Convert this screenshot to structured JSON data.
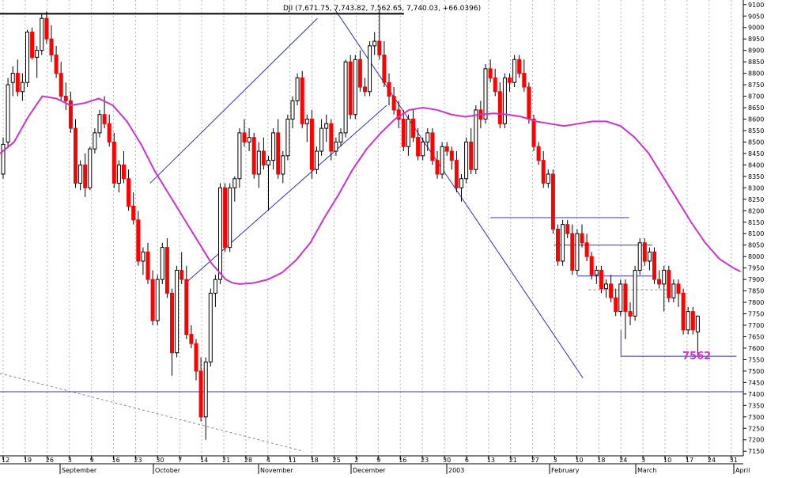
{
  "chart_data": {
    "type": "candlestick",
    "title": "DJI (7,671.75, 7,743.82, 7,562.65, 7,740.03, +66.0396)",
    "y_ticks": [
      "9100",
      "9050",
      "9000",
      "8950",
      "8900",
      "8850",
      "8800",
      "8750",
      "8700",
      "8650",
      "8600",
      "8550",
      "8500",
      "8450",
      "8400",
      "8350",
      "8300",
      "8250",
      "8200",
      "8150",
      "8100",
      "8050",
      "8000",
      "7950",
      "7900",
      "7850",
      "7800",
      "7750",
      "7700",
      "7650",
      "7600",
      "7550",
      "7500",
      "7450",
      "7400",
      "7350",
      "7300",
      "7250",
      "7200",
      "7150"
    ],
    "ylim": [
      7130,
      9120
    ],
    "x_day_labels": [
      "12",
      "19",
      "26",
      "3",
      "9",
      "16",
      "23",
      "30",
      "7",
      "14",
      "21",
      "28",
      "4",
      "11",
      "18",
      "25",
      "2",
      "9",
      "16",
      "23",
      "30",
      "6",
      "13",
      "21",
      "27",
      "3",
      "10",
      "18",
      "24",
      "3",
      "10",
      "17",
      "24",
      "31"
    ],
    "x_month_labels": [
      "September",
      "October",
      "November",
      "December",
      "2003",
      "February",
      "March",
      "April"
    ],
    "annotation": "7562",
    "colors": {
      "up": "#000000",
      "down": "#ff0000",
      "moving_average": "#cc33cc",
      "trendline": "#3333bb",
      "annotation": "#cc33cc"
    },
    "candles": [
      {
        "o": 8360,
        "h": 8520,
        "l": 8340,
        "c": 8490
      },
      {
        "o": 8500,
        "h": 8780,
        "l": 8480,
        "c": 8750
      },
      {
        "o": 8760,
        "h": 8830,
        "l": 8700,
        "c": 8800
      },
      {
        "o": 8800,
        "h": 8860,
        "l": 8700,
        "c": 8720
      },
      {
        "o": 8720,
        "h": 8800,
        "l": 8680,
        "c": 8760
      },
      {
        "o": 8760,
        "h": 8990,
        "l": 8740,
        "c": 8980
      },
      {
        "o": 8980,
        "h": 9000,
        "l": 8860,
        "c": 8870
      },
      {
        "o": 8870,
        "h": 8920,
        "l": 8780,
        "c": 8900
      },
      {
        "o": 8900,
        "h": 9060,
        "l": 8880,
        "c": 9040
      },
      {
        "o": 9040,
        "h": 9070,
        "l": 8930,
        "c": 8950
      },
      {
        "o": 8950,
        "h": 9010,
        "l": 8850,
        "c": 8880
      },
      {
        "o": 8880,
        "h": 8920,
        "l": 8780,
        "c": 8800
      },
      {
        "o": 8800,
        "h": 8850,
        "l": 8680,
        "c": 8700
      },
      {
        "o": 8700,
        "h": 8760,
        "l": 8640,
        "c": 8680
      },
      {
        "o": 8680,
        "h": 8720,
        "l": 8540,
        "c": 8560
      },
      {
        "o": 8560,
        "h": 8600,
        "l": 8300,
        "c": 8320
      },
      {
        "o": 8320,
        "h": 8420,
        "l": 8290,
        "c": 8400
      },
      {
        "o": 8400,
        "h": 8450,
        "l": 8260,
        "c": 8300
      },
      {
        "o": 8300,
        "h": 8480,
        "l": 8290,
        "c": 8470
      },
      {
        "o": 8470,
        "h": 8560,
        "l": 8450,
        "c": 8540
      },
      {
        "o": 8540,
        "h": 8640,
        "l": 8520,
        "c": 8620
      },
      {
        "o": 8620,
        "h": 8700,
        "l": 8560,
        "c": 8580
      },
      {
        "o": 8580,
        "h": 8620,
        "l": 8480,
        "c": 8500
      },
      {
        "o": 8500,
        "h": 8540,
        "l": 8300,
        "c": 8320
      },
      {
        "o": 8320,
        "h": 8420,
        "l": 8280,
        "c": 8400
      },
      {
        "o": 8400,
        "h": 8460,
        "l": 8320,
        "c": 8340
      },
      {
        "o": 8340,
        "h": 8380,
        "l": 8200,
        "c": 8220
      },
      {
        "o": 8220,
        "h": 8280,
        "l": 8140,
        "c": 8160
      },
      {
        "o": 8160,
        "h": 8200,
        "l": 7960,
        "c": 7980
      },
      {
        "o": 7980,
        "h": 8040,
        "l": 7920,
        "c": 8020
      },
      {
        "o": 8020,
        "h": 8060,
        "l": 7880,
        "c": 7900
      },
      {
        "o": 7900,
        "h": 7940,
        "l": 7700,
        "c": 7720
      },
      {
        "o": 7720,
        "h": 7920,
        "l": 7700,
        "c": 7900
      },
      {
        "o": 7900,
        "h": 8060,
        "l": 7880,
        "c": 8040
      },
      {
        "o": 8040,
        "h": 8080,
        "l": 7820,
        "c": 7840
      },
      {
        "o": 7840,
        "h": 7860,
        "l": 7480,
        "c": 7580
      },
      {
        "o": 7580,
        "h": 7960,
        "l": 7560,
        "c": 7940
      },
      {
        "o": 7940,
        "h": 8020,
        "l": 7880,
        "c": 7900
      },
      {
        "o": 7900,
        "h": 7960,
        "l": 7640,
        "c": 7660
      },
      {
        "o": 7660,
        "h": 7700,
        "l": 7600,
        "c": 7620
      },
      {
        "o": 7620,
        "h": 7640,
        "l": 7460,
        "c": 7500
      },
      {
        "o": 7500,
        "h": 7560,
        "l": 7280,
        "c": 7300
      },
      {
        "o": 7300,
        "h": 7560,
        "l": 7200,
        "c": 7540
      },
      {
        "o": 7540,
        "h": 7860,
        "l": 7520,
        "c": 7840
      },
      {
        "o": 7840,
        "h": 7920,
        "l": 7780,
        "c": 7900
      },
      {
        "o": 7900,
        "h": 8320,
        "l": 7880,
        "c": 8300
      },
      {
        "o": 8300,
        "h": 8320,
        "l": 8020,
        "c": 8040
      },
      {
        "o": 8040,
        "h": 8320,
        "l": 8020,
        "c": 8300
      },
      {
        "o": 8300,
        "h": 8350,
        "l": 8240,
        "c": 8340
      },
      {
        "o": 8340,
        "h": 8560,
        "l": 8300,
        "c": 8540
      },
      {
        "o": 8540,
        "h": 8600,
        "l": 8480,
        "c": 8500
      },
      {
        "o": 8500,
        "h": 8560,
        "l": 8460,
        "c": 8520
      },
      {
        "o": 8520,
        "h": 8540,
        "l": 8340,
        "c": 8360
      },
      {
        "o": 8360,
        "h": 8500,
        "l": 8300,
        "c": 8460
      },
      {
        "o": 8460,
        "h": 8520,
        "l": 8380,
        "c": 8400
      },
      {
        "o": 8400,
        "h": 8440,
        "l": 8200,
        "c": 8420
      },
      {
        "o": 8420,
        "h": 8560,
        "l": 8380,
        "c": 8540
      },
      {
        "o": 8540,
        "h": 8600,
        "l": 8340,
        "c": 8360
      },
      {
        "o": 8360,
        "h": 8460,
        "l": 8320,
        "c": 8440
      },
      {
        "o": 8440,
        "h": 8620,
        "l": 8420,
        "c": 8600
      },
      {
        "o": 8600,
        "h": 8700,
        "l": 8560,
        "c": 8680
      },
      {
        "o": 8680,
        "h": 8800,
        "l": 8660,
        "c": 8780
      },
      {
        "o": 8780,
        "h": 8810,
        "l": 8560,
        "c": 8580
      },
      {
        "o": 8580,
        "h": 8620,
        "l": 8500,
        "c": 8600
      },
      {
        "o": 8600,
        "h": 8640,
        "l": 8340,
        "c": 8380
      },
      {
        "o": 8380,
        "h": 8480,
        "l": 8360,
        "c": 8460
      },
      {
        "o": 8460,
        "h": 8600,
        "l": 8440,
        "c": 8560
      },
      {
        "o": 8560,
        "h": 8620,
        "l": 8500,
        "c": 8580
      },
      {
        "o": 8580,
        "h": 8600,
        "l": 8420,
        "c": 8460
      },
      {
        "o": 8460,
        "h": 8520,
        "l": 8440,
        "c": 8500
      },
      {
        "o": 8500,
        "h": 8560,
        "l": 8480,
        "c": 8540
      },
      {
        "o": 8540,
        "h": 8860,
        "l": 8520,
        "c": 8850
      },
      {
        "o": 8850,
        "h": 8880,
        "l": 8600,
        "c": 8620
      },
      {
        "o": 8620,
        "h": 8880,
        "l": 8600,
        "c": 8860
      },
      {
        "o": 8860,
        "h": 8900,
        "l": 8720,
        "c": 8740
      },
      {
        "o": 8740,
        "h": 8780,
        "l": 8700,
        "c": 8720
      },
      {
        "o": 8720,
        "h": 8940,
        "l": 8700,
        "c": 8920
      },
      {
        "o": 8920,
        "h": 8980,
        "l": 8880,
        "c": 8940
      },
      {
        "o": 8940,
        "h": 9080,
        "l": 8860,
        "c": 8880
      },
      {
        "o": 8880,
        "h": 8940,
        "l": 8740,
        "c": 8760
      },
      {
        "o": 8760,
        "h": 8800,
        "l": 8660,
        "c": 8700
      },
      {
        "o": 8700,
        "h": 8740,
        "l": 8620,
        "c": 8640
      },
      {
        "o": 8640,
        "h": 8680,
        "l": 8560,
        "c": 8600
      },
      {
        "o": 8600,
        "h": 8640,
        "l": 8460,
        "c": 8480
      },
      {
        "o": 8480,
        "h": 8620,
        "l": 8440,
        "c": 8600
      },
      {
        "o": 8600,
        "h": 8640,
        "l": 8500,
        "c": 8520
      },
      {
        "o": 8520,
        "h": 8560,
        "l": 8420,
        "c": 8440
      },
      {
        "o": 8440,
        "h": 8520,
        "l": 8420,
        "c": 8500
      },
      {
        "o": 8500,
        "h": 8560,
        "l": 8460,
        "c": 8540
      },
      {
        "o": 8540,
        "h": 8560,
        "l": 8400,
        "c": 8420
      },
      {
        "o": 8420,
        "h": 8460,
        "l": 8340,
        "c": 8360
      },
      {
        "o": 8360,
        "h": 8500,
        "l": 8340,
        "c": 8480
      },
      {
        "o": 8480,
        "h": 8500,
        "l": 8440,
        "c": 8460
      },
      {
        "o": 8460,
        "h": 8480,
        "l": 8380,
        "c": 8420
      },
      {
        "o": 8420,
        "h": 8460,
        "l": 8280,
        "c": 8300
      },
      {
        "o": 8300,
        "h": 8360,
        "l": 8240,
        "c": 8340
      },
      {
        "o": 8340,
        "h": 8520,
        "l": 8320,
        "c": 8500
      },
      {
        "o": 8500,
        "h": 8560,
        "l": 8360,
        "c": 8380
      },
      {
        "o": 8380,
        "h": 8660,
        "l": 8360,
        "c": 8640
      },
      {
        "o": 8640,
        "h": 8680,
        "l": 8560,
        "c": 8600
      },
      {
        "o": 8600,
        "h": 8840,
        "l": 8580,
        "c": 8820
      },
      {
        "o": 8820,
        "h": 8860,
        "l": 8760,
        "c": 8780
      },
      {
        "o": 8780,
        "h": 8820,
        "l": 8700,
        "c": 8720
      },
      {
        "o": 8720,
        "h": 8760,
        "l": 8560,
        "c": 8580
      },
      {
        "o": 8580,
        "h": 8800,
        "l": 8560,
        "c": 8780
      },
      {
        "o": 8780,
        "h": 8800,
        "l": 8720,
        "c": 8760
      },
      {
        "o": 8760,
        "h": 8880,
        "l": 8740,
        "c": 8860
      },
      {
        "o": 8860,
        "h": 8880,
        "l": 8780,
        "c": 8800
      },
      {
        "o": 8800,
        "h": 8860,
        "l": 8720,
        "c": 8740
      },
      {
        "o": 8740,
        "h": 8760,
        "l": 8580,
        "c": 8600
      },
      {
        "o": 8600,
        "h": 8620,
        "l": 8460,
        "c": 8480
      },
      {
        "o": 8480,
        "h": 8500,
        "l": 8400,
        "c": 8420
      },
      {
        "o": 8420,
        "h": 8460,
        "l": 8300,
        "c": 8320
      },
      {
        "o": 8320,
        "h": 8380,
        "l": 8300,
        "c": 8360
      },
      {
        "o": 8360,
        "h": 8380,
        "l": 8100,
        "c": 8120
      },
      {
        "o": 8120,
        "h": 8140,
        "l": 7960,
        "c": 7980
      },
      {
        "o": 7980,
        "h": 8160,
        "l": 7960,
        "c": 8140
      },
      {
        "o": 8140,
        "h": 8160,
        "l": 8080,
        "c": 8100
      },
      {
        "o": 8100,
        "h": 8140,
        "l": 7920,
        "c": 7940
      },
      {
        "o": 7940,
        "h": 8120,
        "l": 7920,
        "c": 8100
      },
      {
        "o": 8100,
        "h": 8140,
        "l": 8040,
        "c": 8060
      },
      {
        "o": 8060,
        "h": 8100,
        "l": 7980,
        "c": 8000
      },
      {
        "o": 8000,
        "h": 8020,
        "l": 7900,
        "c": 7920
      },
      {
        "o": 7920,
        "h": 7960,
        "l": 7880,
        "c": 7940
      },
      {
        "o": 7940,
        "h": 7960,
        "l": 7840,
        "c": 7860
      },
      {
        "o": 7860,
        "h": 7900,
        "l": 7820,
        "c": 7880
      },
      {
        "o": 7880,
        "h": 7920,
        "l": 7800,
        "c": 7820
      },
      {
        "o": 7820,
        "h": 7860,
        "l": 7740,
        "c": 7760
      },
      {
        "o": 7760,
        "h": 7900,
        "l": 7740,
        "c": 7880
      },
      {
        "o": 7880,
        "h": 7900,
        "l": 7640,
        "c": 7760
      },
      {
        "o": 7760,
        "h": 7800,
        "l": 7700,
        "c": 7740
      },
      {
        "o": 7740,
        "h": 7960,
        "l": 7720,
        "c": 7940
      },
      {
        "o": 7940,
        "h": 8080,
        "l": 7920,
        "c": 8060
      },
      {
        "o": 8060,
        "h": 8080,
        "l": 7960,
        "c": 7980
      },
      {
        "o": 7980,
        "h": 8040,
        "l": 7940,
        "c": 8020
      },
      {
        "o": 8020,
        "h": 8040,
        "l": 7880,
        "c": 7900
      },
      {
        "o": 7900,
        "h": 7940,
        "l": 7860,
        "c": 7880
      },
      {
        "o": 7880,
        "h": 7960,
        "l": 7760,
        "c": 7940
      },
      {
        "o": 7940,
        "h": 7960,
        "l": 7800,
        "c": 7820
      },
      {
        "o": 7820,
        "h": 7900,
        "l": 7800,
        "c": 7880
      },
      {
        "o": 7880,
        "h": 7900,
        "l": 7780,
        "c": 7840
      },
      {
        "o": 7840,
        "h": 7860,
        "l": 7660,
        "c": 7680
      },
      {
        "o": 7680,
        "h": 7780,
        "l": 7660,
        "c": 7760
      },
      {
        "o": 7760,
        "h": 7780,
        "l": 7660,
        "c": 7680
      },
      {
        "o": 7671,
        "h": 7743,
        "l": 7562,
        "c": 7740
      }
    ],
    "moving_average": [
      [
        0,
        8450
      ],
      [
        10,
        8500
      ],
      [
        20,
        8610
      ],
      [
        30,
        8700
      ],
      [
        40,
        8690
      ],
      [
        50,
        8660
      ],
      [
        60,
        8670
      ],
      [
        70,
        8690
      ],
      [
        80,
        8660
      ],
      [
        90,
        8590
      ],
      [
        100,
        8490
      ],
      [
        110,
        8370
      ],
      [
        120,
        8270
      ],
      [
        130,
        8170
      ],
      [
        140,
        8070
      ],
      [
        150,
        7970
      ],
      [
        160,
        7900
      ],
      [
        165,
        7885
      ],
      [
        170,
        7880
      ],
      [
        180,
        7885
      ],
      [
        190,
        7900
      ],
      [
        200,
        7930
      ],
      [
        210,
        7985
      ],
      [
        220,
        8060
      ],
      [
        230,
        8170
      ],
      [
        240,
        8270
      ],
      [
        250,
        8380
      ],
      [
        260,
        8470
      ],
      [
        270,
        8540
      ],
      [
        280,
        8600
      ],
      [
        290,
        8640
      ],
      [
        300,
        8650
      ],
      [
        310,
        8640
      ],
      [
        320,
        8620
      ],
      [
        330,
        8610
      ],
      [
        340,
        8620
      ],
      [
        350,
        8625
      ],
      [
        360,
        8620
      ],
      [
        370,
        8610
      ],
      [
        380,
        8590
      ],
      [
        390,
        8580
      ],
      [
        400,
        8570
      ],
      [
        410,
        8580
      ],
      [
        420,
        8590
      ],
      [
        430,
        8590
      ],
      [
        440,
        8570
      ],
      [
        450,
        8520
      ],
      [
        460,
        8450
      ],
      [
        470,
        8350
      ],
      [
        480,
        8250
      ],
      [
        490,
        8150
      ],
      [
        500,
        8060
      ],
      [
        510,
        7990
      ],
      [
        520,
        7950
      ],
      [
        525,
        7935
      ]
    ],
    "trendlines": [
      {
        "from": [
          130,
          8320
        ],
        "to": [
          275,
          9040
        ]
      },
      {
        "from": [
          162,
          7890
        ],
        "to": [
          335,
          8660
        ]
      },
      {
        "from": [
          290,
          9080
        ],
        "to": [
          505,
          7470
        ]
      }
    ],
    "levels": [
      {
        "from": [
          0,
          9060
        ],
        "to": [
          350,
          9060
        ]
      },
      {
        "from": [
          425,
          8170
        ],
        "to": [
          545,
          8170
        ]
      },
      {
        "from": [
          480,
          8050
        ],
        "to": [
          565,
          8050
        ]
      },
      {
        "from": [
          500,
          7915
        ],
        "to": [
          565,
          7915
        ]
      },
      {
        "from": [
          538,
          7565
        ],
        "to": [
          638,
          7565
        ]
      },
      {
        "from": [
          0,
          7410
        ],
        "to": [
          644,
          7410
        ]
      }
    ],
    "dotted_lines": [
      {
        "from": [
          0,
          7490
        ],
        "to": [
          263,
          7150
        ]
      },
      {
        "from": [
          510,
          7855
        ],
        "to": [
          578,
          7855
        ]
      }
    ]
  }
}
